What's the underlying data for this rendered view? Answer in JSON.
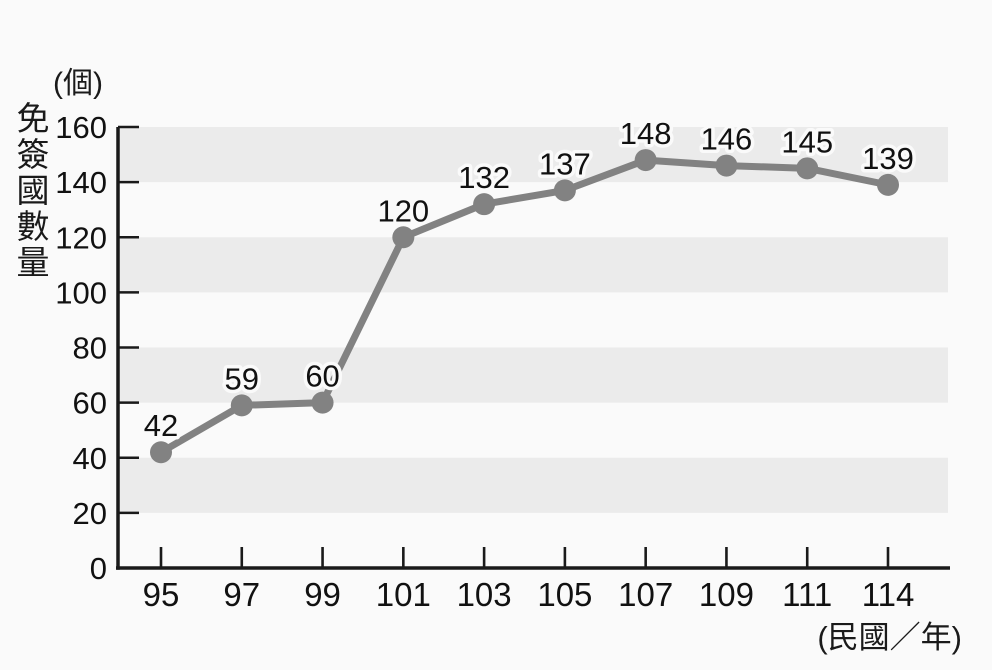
{
  "chart_data": {
    "type": "line",
    "title": "",
    "unit_label": "(個)",
    "y_axis_title": "免簽國數量",
    "x_axis_unit": "(民國／年)",
    "categories": [
      "95",
      "97",
      "99",
      "101",
      "103",
      "105",
      "107",
      "109",
      "111",
      "114"
    ],
    "values": [
      42,
      59,
      60,
      120,
      132,
      137,
      148,
      146,
      145,
      139
    ],
    "ylim": [
      0,
      160
    ],
    "y_ticks": [
      0,
      20,
      40,
      60,
      80,
      100,
      120,
      140,
      160
    ],
    "grid": "alternating horizontal gray bands every 20 units",
    "legend": "none",
    "marker": "filled circle",
    "colors": {
      "line": "#828282",
      "marker": "#828282",
      "band": "#ebebeb",
      "background": "#fafafa",
      "axis": "#1a1a1a",
      "text": "#111111"
    }
  }
}
